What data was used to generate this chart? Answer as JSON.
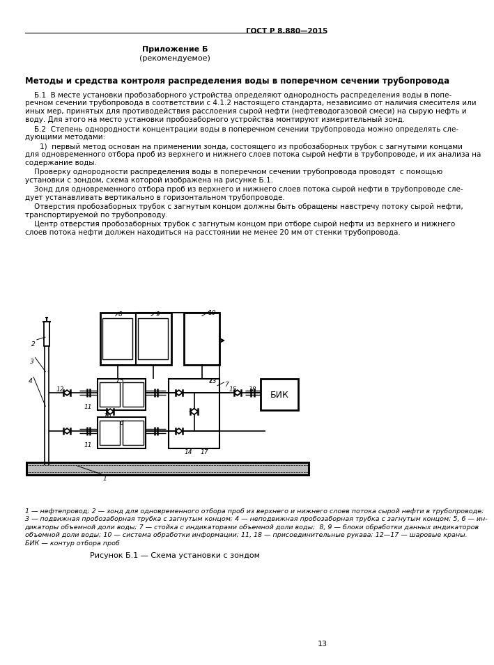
{
  "page_header": "ГОСТ Р 8.880—2015",
  "appendix_title": "Приложение Б",
  "appendix_subtitle": "(рекомендуемое)",
  "section_title": "Методы и средства контроля распределения воды в поперечном сечении трубопровода",
  "para1_line1": "Б.1  В месте установки пробозаборного устройства определяют однородность распределения воды в попе-",
  "para1_line2": "речном сечении трубопровода в соответствии с 4.1.2 настоящего стандарта, независимо от наличия смесителя или",
  "para1_line3": "иных мер, принятых для противодействия расслоения сырой нефти (нефтеводогазовой смеси) на сырую нефть и",
  "para1_line4": "воду. Для этого на место установки пробозаборного устройства монтируют измерительный зонд.",
  "para2_line1": "Б.2  Степень однородности концентрации воды в поперечном сечении трубопровода можно определять сле-",
  "para2_line2": "дующими методами:",
  "m1_line1": "1)  первый метод основан на применении зонда, состоящего из пробозаборных трубок с загнутыми концами",
  "m1_line2": "для одновременного отбора проб из верхнего и нижнего слоев потока сырой нефти в трубопроводе, и их анализа на",
  "m1_line3": "содержание воды.",
  "m2a_line1": "Проверку однородности распределения воды в поперечном сечении трубопровода проводят  с помощью",
  "m2a_line2": "установки с зондом, схема которой изображена на рисунке Б.1.",
  "m2b_line1": "Зонд для одновременного отбора проб из верхнего и нижнего слоев потока сырой нефти в трубопроводе сле-",
  "m2b_line2": "дует устанавливать вертикально в горизонтальном трубопроводе.",
  "m2c_line1": "Отверстия пробозаборных трубок с загнутым концом должны быть обращены навстречу потоку сырой нефти,",
  "m2c_line2": "транспортируемой по трубопроводу.",
  "m2d_line1": "Центр отверстия пробозаборных трубок с загнутым концом при отборе сырой нефти из верхнего и нижнего",
  "m2d_line2": "слоев потока нефти должен находиться на расстоянии не менее 20 мм от стенки трубопровода.",
  "fig_cap1": "1 — нефтепровод; 2 — зонд для одновременного отбора проб из верхнего и нижнего слоев потока сырой нефти в трубопроводе;",
  "fig_cap2": "3 — подвижная пробозаборная трубка с загнутым концом; 4 — неподвижная пробозаборная трубка с загнутым концом; 5, 6 — ин-",
  "fig_cap3": "дикаторы объемной доли воды; 7 — стойка с индикаторами объемной доли воды;  8, 9 — блоки обработки данных индикаторов",
  "fig_cap4": "объемной доли воды; 10 — система обработки информации; 11, 18 — присоединительные рукава; 12—17 — шаровые краны.",
  "fig_cap5": "БИК — контур отбора проб",
  "figure_title": "Рисунок Б.1 — Схема установки с зондом",
  "page_number": "13",
  "bg_color": "#ffffff"
}
